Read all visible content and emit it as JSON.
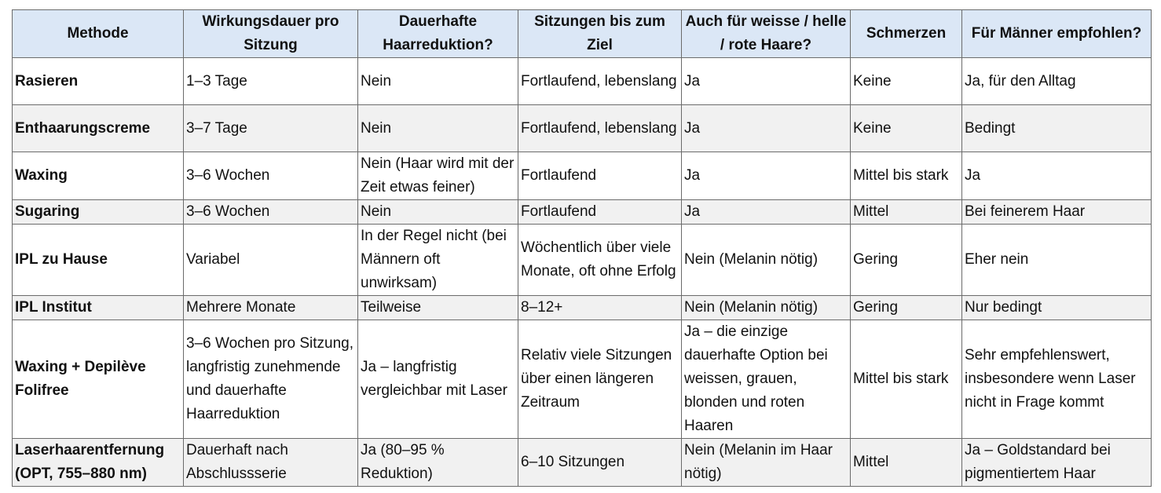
{
  "table": {
    "headers": [
      "Methode",
      "Wirkungsdauer pro Sitzung",
      "Dauerhafte Haarreduktion?",
      "Sitzungen bis zum Ziel",
      "Auch für weisse / helle / rote Haare?",
      "Schmerzen",
      "Für Männer empfohlen?"
    ],
    "rows": [
      [
        "Rasieren",
        "1–3 Tage",
        "Nein",
        "Fortlaufend, lebenslang",
        "Ja",
        "Keine",
        "Ja, für den Alltag"
      ],
      [
        "Enthaarungscreme",
        "3–7 Tage",
        "Nein",
        "Fortlaufend, lebenslang",
        "Ja",
        "Keine",
        "Bedingt"
      ],
      [
        "Waxing",
        "3–6 Wochen",
        "Nein (Haar wird mit der Zeit etwas feiner)",
        "Fortlaufend",
        "Ja",
        "Mittel bis stark",
        "Ja"
      ],
      [
        "Sugaring",
        "3–6 Wochen",
        "Nein",
        "Fortlaufend",
        "Ja",
        "Mittel",
        "Bei feinerem Haar"
      ],
      [
        "IPL zu Hause",
        "Variabel",
        "In der Regel nicht (bei Männern oft unwirksam)",
        "Wöchentlich über viele Monate, oft ohne Erfolg",
        "Nein (Melanin nötig)",
        "Gering",
        "Eher nein"
      ],
      [
        "IPL Institut",
        "Mehrere Monate",
        "Teilweise",
        "8–12+",
        "Nein (Melanin nötig)",
        "Gering",
        "Nur bedingt"
      ],
      [
        "Waxing + Depilève Folifree",
        "3–6 Wochen pro Sitzung, langfristig zunehmende und dauerhafte Haarreduktion",
        "Ja – langfristig vergleichbar mit Laser",
        "Relativ viele Sitzungen über einen längeren Zeitraum",
        "Ja – die einzige dauerhafte Option bei weissen, grauen, blonden und roten Haaren",
        "Mittel bis stark",
        "Sehr empfehlenswert, insbesondere wenn Laser nicht in Frage kommt"
      ],
      [
        "Laserhaarentfernung (OPT, 755–880 nm)",
        "Dauerhaft nach Abschlussserie",
        "Ja (80–95 % Reduktion)",
        "6–10 Sitzungen",
        "Nein (Melanin im Haar nötig)",
        "Mittel",
        "Ja – Goldstandard bei pigmentiertem Haar"
      ]
    ]
  }
}
